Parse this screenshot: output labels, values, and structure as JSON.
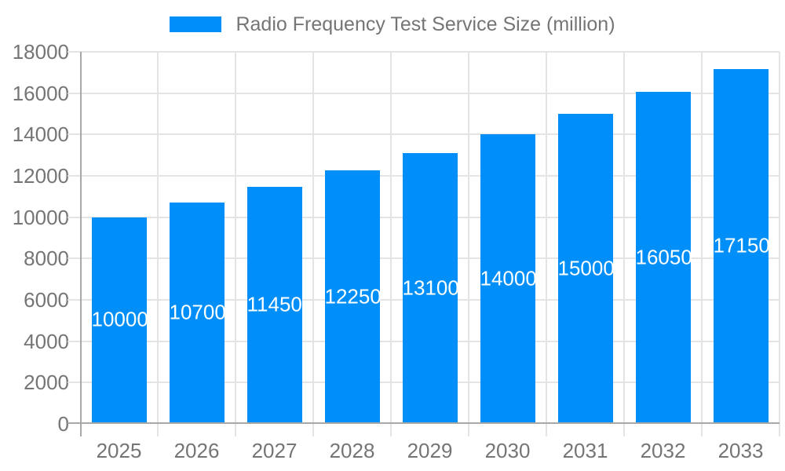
{
  "legend": {
    "label": "Radio Frequency Test Service Size (million)"
  },
  "chart_data": {
    "type": "bar",
    "title": "Radio Frequency Test Service Size (million)",
    "categories": [
      "2025",
      "2026",
      "2027",
      "2028",
      "2029",
      "2030",
      "2031",
      "2032",
      "2033"
    ],
    "values": [
      10000,
      10700,
      11450,
      12250,
      13100,
      14000,
      15000,
      16050,
      17150
    ],
    "bar_labels": [
      "10000",
      "10700",
      "11450",
      "12250",
      "13100",
      "14000",
      "15000",
      "16050",
      "17150"
    ],
    "xlabel": "",
    "ylabel": "",
    "ylim": [
      0,
      18000
    ],
    "ytick_step": 2000,
    "yticks": [
      0,
      2000,
      4000,
      6000,
      8000,
      10000,
      12000,
      14000,
      16000,
      18000
    ],
    "grid": true,
    "legend_position": "top",
    "colors": {
      "bar": "#008ff8",
      "bar_value_text": "#ffffff",
      "axis_text": "#757575",
      "gridline": "#e4e4e4",
      "axis_line": "#a8a8a8",
      "background": "#ffffff"
    }
  }
}
